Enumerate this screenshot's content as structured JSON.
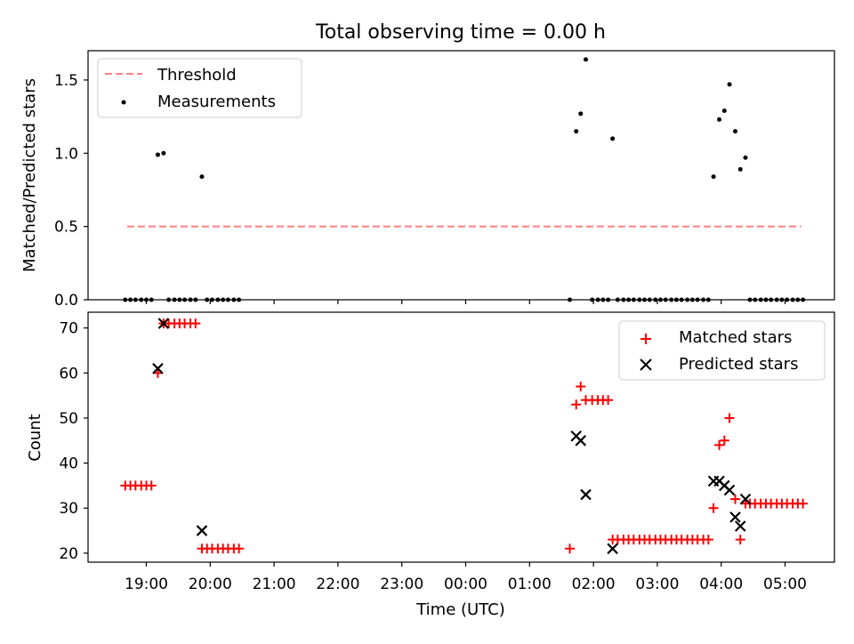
{
  "figure": {
    "title": "Total observing time = 0.00 h",
    "xlabel": "Time (UTC)",
    "x_ticks": [
      "19:00",
      "20:00",
      "21:00",
      "22:00",
      "23:00",
      "00:00",
      "01:00",
      "02:00",
      "03:00",
      "04:00",
      "05:00"
    ]
  },
  "chart_data": [
    {
      "type": "scatter",
      "panel": "top",
      "ylabel": "Matched/Predicted stars",
      "ylim": [
        0,
        1.7
      ],
      "yticks": [
        "0.0",
        "0.5",
        "1.0",
        "1.5"
      ],
      "x_unit": "hours after 19:00 UTC",
      "legend_position": "top-left",
      "legend": [
        "Threshold",
        "Measurements"
      ],
      "series": [
        {
          "name": "Threshold",
          "style": "dashed-line",
          "color": "#ff7f7f",
          "points": [
            [
              -0.3,
              0.5
            ],
            [
              10.25,
              0.5
            ]
          ]
        },
        {
          "name": "Measurements",
          "style": "dot",
          "color": "#000000",
          "points": [
            [
              -0.33,
              0
            ],
            [
              -0.25,
              0
            ],
            [
              -0.17,
              0
            ],
            [
              -0.08,
              0
            ],
            [
              0.0,
              0
            ],
            [
              0.08,
              0
            ],
            [
              0.18,
              0.99
            ],
            [
              0.27,
              1.0
            ],
            [
              0.35,
              0
            ],
            [
              0.44,
              0
            ],
            [
              0.52,
              0
            ],
            [
              0.6,
              0
            ],
            [
              0.69,
              0
            ],
            [
              0.77,
              0
            ],
            [
              0.87,
              0.84
            ],
            [
              0.95,
              0
            ],
            [
              1.03,
              0
            ],
            [
              1.12,
              0
            ],
            [
              1.2,
              0
            ],
            [
              1.28,
              0
            ],
            [
              1.37,
              0
            ],
            [
              1.45,
              0
            ],
            [
              6.63,
              0
            ],
            [
              6.73,
              1.15
            ],
            [
              6.8,
              1.27
            ],
            [
              6.88,
              1.64
            ],
            [
              6.98,
              0
            ],
            [
              7.07,
              0
            ],
            [
              7.15,
              0
            ],
            [
              7.23,
              0
            ],
            [
              7.3,
              1.1
            ],
            [
              7.38,
              0
            ],
            [
              7.47,
              0
            ],
            [
              7.55,
              0
            ],
            [
              7.63,
              0
            ],
            [
              7.72,
              0
            ],
            [
              7.8,
              0
            ],
            [
              7.88,
              0
            ],
            [
              7.97,
              0
            ],
            [
              8.05,
              0
            ],
            [
              8.13,
              0
            ],
            [
              8.22,
              0
            ],
            [
              8.3,
              0
            ],
            [
              8.38,
              0
            ],
            [
              8.47,
              0
            ],
            [
              8.55,
              0
            ],
            [
              8.63,
              0
            ],
            [
              8.72,
              0
            ],
            [
              8.8,
              0
            ],
            [
              8.88,
              0.84
            ],
            [
              8.97,
              1.23
            ],
            [
              9.05,
              1.29
            ],
            [
              9.13,
              1.47
            ],
            [
              9.22,
              1.15
            ],
            [
              9.3,
              0.89
            ],
            [
              9.38,
              0.97
            ],
            [
              9.45,
              0
            ],
            [
              9.53,
              0
            ],
            [
              9.62,
              0
            ],
            [
              9.7,
              0
            ],
            [
              9.78,
              0
            ],
            [
              9.87,
              0
            ],
            [
              9.95,
              0
            ],
            [
              10.03,
              0
            ],
            [
              10.12,
              0
            ],
            [
              10.2,
              0
            ],
            [
              10.28,
              0
            ]
          ]
        }
      ]
    },
    {
      "type": "scatter",
      "panel": "bottom",
      "ylabel": "Count",
      "ylim": [
        18,
        73.5
      ],
      "yticks": [
        "20",
        "30",
        "40",
        "50",
        "60",
        "70"
      ],
      "x_unit": "hours after 19:00 UTC",
      "legend_position": "top-right",
      "legend": [
        "Matched stars",
        "Predicted stars"
      ],
      "series": [
        {
          "name": "Matched stars",
          "style": "plus",
          "color": "#ff0000",
          "points": [
            [
              -0.33,
              35
            ],
            [
              -0.25,
              35
            ],
            [
              -0.17,
              35
            ],
            [
              -0.08,
              35
            ],
            [
              0.0,
              35
            ],
            [
              0.08,
              35
            ],
            [
              0.18,
              60
            ],
            [
              0.27,
              71
            ],
            [
              0.35,
              71
            ],
            [
              0.44,
              71
            ],
            [
              0.52,
              71
            ],
            [
              0.6,
              71
            ],
            [
              0.69,
              71
            ],
            [
              0.77,
              71
            ],
            [
              0.87,
              21
            ],
            [
              0.95,
              21
            ],
            [
              1.03,
              21
            ],
            [
              1.12,
              21
            ],
            [
              1.2,
              21
            ],
            [
              1.28,
              21
            ],
            [
              1.37,
              21
            ],
            [
              1.45,
              21
            ],
            [
              6.63,
              21
            ],
            [
              6.73,
              53
            ],
            [
              6.8,
              57
            ],
            [
              6.88,
              54
            ],
            [
              6.98,
              54
            ],
            [
              7.07,
              54
            ],
            [
              7.15,
              54
            ],
            [
              7.23,
              54
            ],
            [
              7.3,
              23
            ],
            [
              7.38,
              23
            ],
            [
              7.47,
              23
            ],
            [
              7.55,
              23
            ],
            [
              7.63,
              23
            ],
            [
              7.72,
              23
            ],
            [
              7.8,
              23
            ],
            [
              7.88,
              23
            ],
            [
              7.97,
              23
            ],
            [
              8.05,
              23
            ],
            [
              8.13,
              23
            ],
            [
              8.22,
              23
            ],
            [
              8.3,
              23
            ],
            [
              8.38,
              23
            ],
            [
              8.47,
              23
            ],
            [
              8.55,
              23
            ],
            [
              8.63,
              23
            ],
            [
              8.72,
              23
            ],
            [
              8.8,
              23
            ],
            [
              8.88,
              30
            ],
            [
              8.97,
              44
            ],
            [
              9.05,
              45
            ],
            [
              9.13,
              50
            ],
            [
              9.22,
              32
            ],
            [
              9.3,
              23
            ],
            [
              9.38,
              31
            ],
            [
              9.45,
              31
            ],
            [
              9.53,
              31
            ],
            [
              9.62,
              31
            ],
            [
              9.7,
              31
            ],
            [
              9.78,
              31
            ],
            [
              9.87,
              31
            ],
            [
              9.95,
              31
            ],
            [
              10.03,
              31
            ],
            [
              10.12,
              31
            ],
            [
              10.2,
              31
            ],
            [
              10.28,
              31
            ]
          ]
        },
        {
          "name": "Predicted stars",
          "style": "x",
          "color": "#000000",
          "points": [
            [
              0.18,
              61
            ],
            [
              0.27,
              71
            ],
            [
              0.87,
              25
            ],
            [
              6.73,
              46
            ],
            [
              6.8,
              45
            ],
            [
              6.88,
              33
            ],
            [
              7.3,
              21
            ],
            [
              8.88,
              36
            ],
            [
              8.97,
              36
            ],
            [
              9.05,
              35
            ],
            [
              9.13,
              34
            ],
            [
              9.22,
              28
            ],
            [
              9.3,
              26
            ],
            [
              9.38,
              32
            ]
          ]
        }
      ]
    }
  ]
}
